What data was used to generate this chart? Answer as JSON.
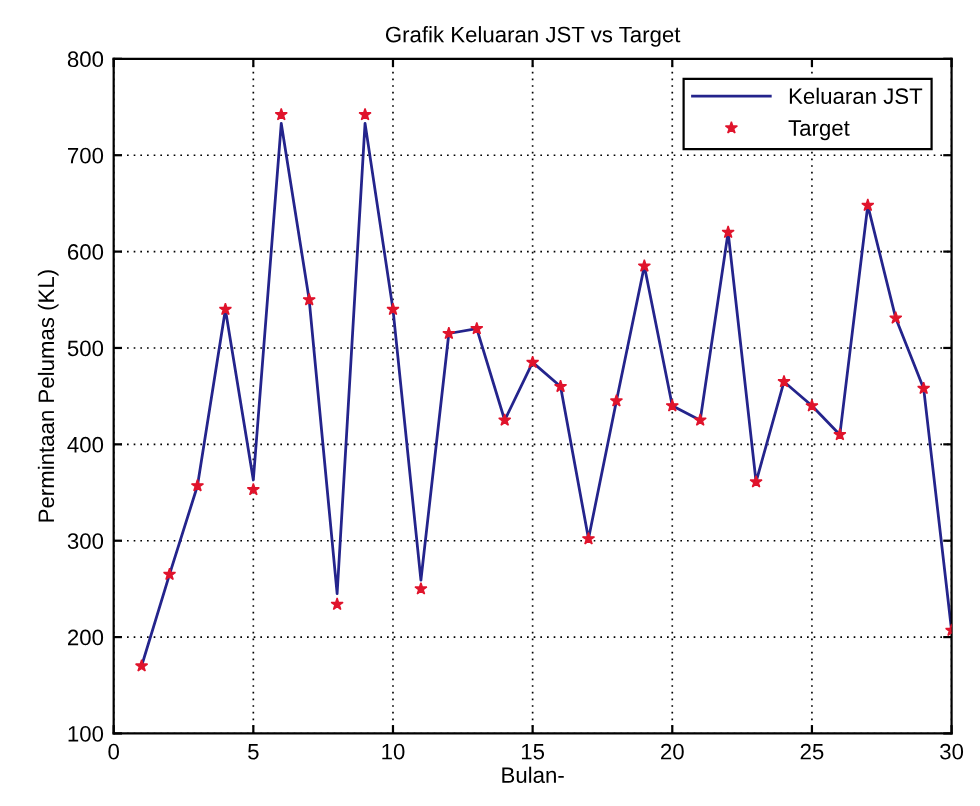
{
  "chart_data": {
    "type": "line",
    "title": "Grafik Keluaran JST vs Target",
    "xlabel": "Bulan-",
    "ylabel": "Permintaan Pelumas (KL)",
    "x": [
      1,
      2,
      3,
      4,
      5,
      6,
      7,
      8,
      9,
      10,
      11,
      12,
      13,
      14,
      15,
      16,
      17,
      18,
      19,
      20,
      21,
      22,
      23,
      24,
      25,
      26,
      27,
      28,
      29,
      30
    ],
    "series": [
      {
        "name": "Keluaran JST",
        "color": "#24248c",
        "line_style": "solid",
        "values": [
          170,
          265,
          357,
          540,
          363,
          733,
          550,
          245,
          733,
          540,
          259,
          515,
          520,
          425,
          485,
          460,
          302,
          445,
          585,
          440,
          425,
          620,
          361,
          465,
          440,
          410,
          648,
          531,
          458,
          207
        ]
      },
      {
        "name": "Target",
        "type": "scatter",
        "color": "#e0142c",
        "marker": "star",
        "values": [
          170,
          265,
          357,
          540,
          353,
          742,
          550,
          234,
          742,
          540,
          250,
          515,
          520,
          425,
          485,
          460,
          302,
          445,
          585,
          440,
          425,
          620,
          361,
          465,
          440,
          410,
          648,
          531,
          458,
          207
        ]
      }
    ],
    "xlim": [
      0,
      30
    ],
    "xticks": [
      0,
      5,
      10,
      15,
      20,
      25,
      30
    ],
    "ylim": [
      100,
      800
    ],
    "yticks": [
      100,
      200,
      300,
      400,
      500,
      600,
      700,
      800
    ],
    "grid": true,
    "legend": "top right"
  }
}
